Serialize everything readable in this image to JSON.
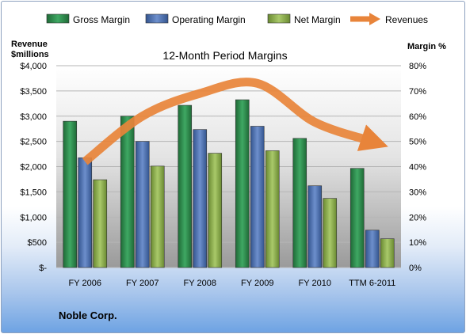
{
  "chart_data": {
    "type": "bar",
    "title": "12-Month Period Margins",
    "categories": [
      "FY 2006",
      "FY 2007",
      "FY 2008",
      "FY 2009",
      "FY 2010",
      "TTM 6-2011"
    ],
    "series": [
      {
        "name": "Gross Margin",
        "axis": "right",
        "values": [
          58,
          60,
          64.3,
          66.5,
          51.2,
          39.3
        ],
        "color": "#2e8b4c"
      },
      {
        "name": "Operating Margin",
        "axis": "right",
        "values": [
          43.5,
          50,
          54.7,
          56,
          32.4,
          14.8
        ],
        "color": "#4f72b0"
      },
      {
        "name": "Net Margin",
        "axis": "right",
        "values": [
          34.8,
          40.2,
          45.3,
          46.3,
          27.4,
          11.4
        ],
        "color": "#8fb04c"
      },
      {
        "name": "Revenues",
        "axis": "left",
        "type": "line",
        "values": [
          2100,
          3000,
          3450,
          3650,
          2880,
          2500
        ],
        "color": "#e8843a"
      }
    ],
    "yleft": {
      "title_lines": [
        "Revenue",
        "$millions"
      ],
      "ticks": [
        "$-",
        "$500",
        "$1,000",
        "$1,500",
        "$2,000",
        "$2,500",
        "$3,000",
        "$3,500",
        "$4,000"
      ],
      "range": [
        0,
        4000
      ]
    },
    "yright": {
      "title": "Margin %",
      "ticks": [
        "0%",
        "10%",
        "20%",
        "30%",
        "40%",
        "50%",
        "60%",
        "70%",
        "80%"
      ],
      "range": [
        0,
        80
      ]
    },
    "legend_position": "top",
    "grid": true
  },
  "footer": {
    "company": "Noble Corp."
  }
}
